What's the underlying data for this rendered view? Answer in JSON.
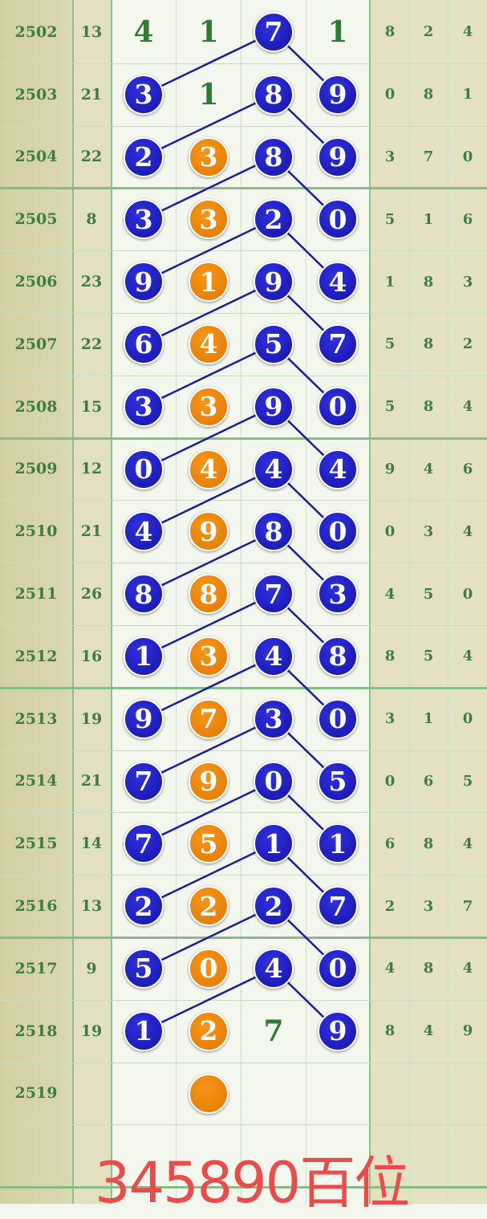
{
  "colors": {
    "blue_ball": "#1a1ab8",
    "orange_ball": "#f08a10",
    "text_green": "#3f7d3f",
    "grid_green": "#8cc08c",
    "overlay_red": "#ec4b4b",
    "line": "#1c1ca0"
  },
  "rows": [
    {
      "issue": "2502",
      "sum": "13",
      "digits": [
        {
          "v": "4",
          "t": "plain"
        },
        {
          "v": "1",
          "t": "plain"
        },
        {
          "v": "7",
          "t": "blue"
        },
        {
          "v": "1",
          "t": "plain"
        }
      ],
      "side": [
        "8",
        "2",
        "4"
      ]
    },
    {
      "issue": "2503",
      "sum": "21",
      "digits": [
        {
          "v": "3",
          "t": "blue"
        },
        {
          "v": "1",
          "t": "plain"
        },
        {
          "v": "8",
          "t": "blue"
        },
        {
          "v": "9",
          "t": "blue"
        }
      ],
      "side": [
        "0",
        "8",
        "1"
      ]
    },
    {
      "issue": "2504",
      "sum": "22",
      "digits": [
        {
          "v": "2",
          "t": "blue"
        },
        {
          "v": "3",
          "t": "orange"
        },
        {
          "v": "8",
          "t": "blue"
        },
        {
          "v": "9",
          "t": "blue"
        }
      ],
      "side": [
        "3",
        "7",
        "0"
      ]
    },
    {
      "issue": "2505",
      "sum": "8",
      "digits": [
        {
          "v": "3",
          "t": "blue"
        },
        {
          "v": "3",
          "t": "orange"
        },
        {
          "v": "2",
          "t": "blue"
        },
        {
          "v": "0",
          "t": "blue"
        }
      ],
      "side": [
        "5",
        "1",
        "6"
      ]
    },
    {
      "issue": "2506",
      "sum": "23",
      "digits": [
        {
          "v": "9",
          "t": "blue"
        },
        {
          "v": "1",
          "t": "orange"
        },
        {
          "v": "9",
          "t": "blue"
        },
        {
          "v": "4",
          "t": "blue"
        }
      ],
      "side": [
        "1",
        "8",
        "3"
      ]
    },
    {
      "issue": "2507",
      "sum": "22",
      "digits": [
        {
          "v": "6",
          "t": "blue"
        },
        {
          "v": "4",
          "t": "orange"
        },
        {
          "v": "5",
          "t": "blue"
        },
        {
          "v": "7",
          "t": "blue"
        }
      ],
      "side": [
        "5",
        "8",
        "2"
      ]
    },
    {
      "issue": "2508",
      "sum": "15",
      "digits": [
        {
          "v": "3",
          "t": "blue"
        },
        {
          "v": "3",
          "t": "orange"
        },
        {
          "v": "9",
          "t": "blue"
        },
        {
          "v": "0",
          "t": "blue"
        }
      ],
      "side": [
        "5",
        "8",
        "4"
      ]
    },
    {
      "issue": "2509",
      "sum": "12",
      "digits": [
        {
          "v": "0",
          "t": "blue"
        },
        {
          "v": "4",
          "t": "orange"
        },
        {
          "v": "4",
          "t": "blue"
        },
        {
          "v": "4",
          "t": "blue"
        }
      ],
      "side": [
        "9",
        "4",
        "6"
      ]
    },
    {
      "issue": "2510",
      "sum": "21",
      "digits": [
        {
          "v": "4",
          "t": "blue"
        },
        {
          "v": "9",
          "t": "orange"
        },
        {
          "v": "8",
          "t": "blue"
        },
        {
          "v": "0",
          "t": "blue"
        }
      ],
      "side": [
        "0",
        "3",
        "4"
      ]
    },
    {
      "issue": "2511",
      "sum": "26",
      "digits": [
        {
          "v": "8",
          "t": "blue"
        },
        {
          "v": "8",
          "t": "orange"
        },
        {
          "v": "7",
          "t": "blue"
        },
        {
          "v": "3",
          "t": "blue"
        }
      ],
      "side": [
        "4",
        "5",
        "0"
      ]
    },
    {
      "issue": "2512",
      "sum": "16",
      "digits": [
        {
          "v": "1",
          "t": "blue"
        },
        {
          "v": "3",
          "t": "orange"
        },
        {
          "v": "4",
          "t": "blue"
        },
        {
          "v": "8",
          "t": "blue"
        }
      ],
      "side": [
        "8",
        "5",
        "4"
      ]
    },
    {
      "issue": "2513",
      "sum": "19",
      "digits": [
        {
          "v": "9",
          "t": "blue"
        },
        {
          "v": "7",
          "t": "orange"
        },
        {
          "v": "3",
          "t": "blue"
        },
        {
          "v": "0",
          "t": "blue"
        }
      ],
      "side": [
        "3",
        "1",
        "0"
      ]
    },
    {
      "issue": "2514",
      "sum": "21",
      "digits": [
        {
          "v": "7",
          "t": "blue"
        },
        {
          "v": "9",
          "t": "orange"
        },
        {
          "v": "0",
          "t": "blue"
        },
        {
          "v": "5",
          "t": "blue"
        }
      ],
      "side": [
        "0",
        "6",
        "5"
      ]
    },
    {
      "issue": "2515",
      "sum": "14",
      "digits": [
        {
          "v": "7",
          "t": "blue"
        },
        {
          "v": "5",
          "t": "orange"
        },
        {
          "v": "1",
          "t": "blue"
        },
        {
          "v": "1",
          "t": "blue"
        }
      ],
      "side": [
        "6",
        "8",
        "4"
      ]
    },
    {
      "issue": "2516",
      "sum": "13",
      "digits": [
        {
          "v": "2",
          "t": "blue"
        },
        {
          "v": "2",
          "t": "orange"
        },
        {
          "v": "2",
          "t": "blue"
        },
        {
          "v": "7",
          "t": "blue"
        }
      ],
      "side": [
        "2",
        "3",
        "7"
      ]
    },
    {
      "issue": "2517",
      "sum": "9",
      "digits": [
        {
          "v": "5",
          "t": "blue"
        },
        {
          "v": "0",
          "t": "orange"
        },
        {
          "v": "4",
          "t": "blue"
        },
        {
          "v": "0",
          "t": "blue"
        }
      ],
      "side": [
        "4",
        "8",
        "4"
      ]
    },
    {
      "issue": "2518",
      "sum": "19",
      "digits": [
        {
          "v": "1",
          "t": "blue"
        },
        {
          "v": "2",
          "t": "orange"
        },
        {
          "v": "7",
          "t": "plain"
        },
        {
          "v": "9",
          "t": "blue"
        }
      ],
      "side": [
        "8",
        "4",
        "9"
      ]
    },
    {
      "issue": "2519",
      "sum": "",
      "digits": [
        {
          "v": "",
          "t": "empty"
        },
        {
          "v": "",
          "t": "orange"
        },
        {
          "v": "",
          "t": "empty"
        },
        {
          "v": "",
          "t": "empty"
        }
      ],
      "side": [
        "",
        "",
        ""
      ]
    }
  ],
  "overlay_text": "345890百位"
}
